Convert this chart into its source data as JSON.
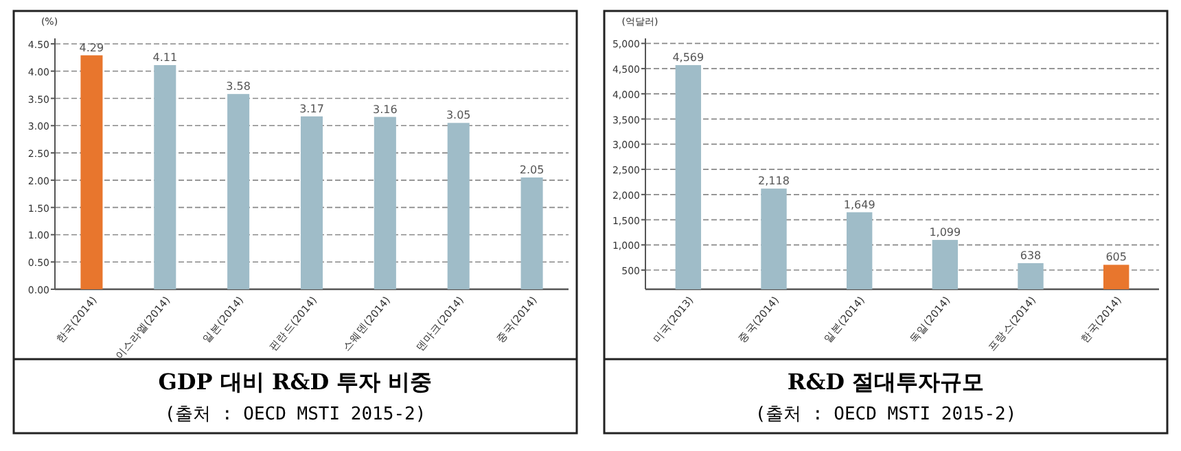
{
  "chart_data": [
    {
      "type": "bar",
      "title": "GDP 대비 R&D 투자 비중",
      "ylabel": "(%)",
      "annotations": [
        "(출처 : OECD MSTI 2015-2)"
      ],
      "categories": [
        "한국(2014)",
        "이스라엘(2014)",
        "일본(2014)",
        "핀란드(2014)",
        "스웨덴(2014)",
        "덴마크(2014)",
        "중국(2014)"
      ],
      "values": [
        4.29,
        4.11,
        3.58,
        3.17,
        3.16,
        3.05,
        2.05
      ],
      "colors": [
        "#e8762d",
        "#9fbcc8",
        "#9fbcc8",
        "#9fbcc8",
        "#9fbcc8",
        "#9fbcc8",
        "#9fbcc8"
      ],
      "data_labels": true,
      "ylim": [
        0,
        4.6
      ],
      "yticks": [
        {
          "value": 0,
          "label": "0.00"
        },
        {
          "value": 0.5,
          "label": "0.50"
        },
        {
          "value": 1,
          "label": "1.00"
        },
        {
          "value": 1.5,
          "label": "1.50"
        },
        {
          "value": 2,
          "label": "2.00"
        },
        {
          "value": 2.5,
          "label": "2.50"
        },
        {
          "value": 3,
          "label": "3.00"
        },
        {
          "value": 3.5,
          "label": "3.50"
        },
        {
          "value": 4,
          "label": "4.00"
        },
        {
          "value": 4.5,
          "label": "4.50"
        }
      ],
      "grid": "y"
    },
    {
      "type": "bar",
      "title": "R&D 절대투자규모",
      "ylabel": "(억달러)",
      "annotations": [
        "(출처 : OECD MSTI 2015-2)"
      ],
      "categories": [
        "미국(2013)",
        "중국(2014)",
        "일본(2014)",
        "독일(2014)",
        "프랑스(2014)",
        "한국(2014)"
      ],
      "values": [
        4569,
        2118,
        1649,
        1099,
        638,
        605
      ],
      "colors": [
        "#9fbcc8",
        "#9fbcc8",
        "#9fbcc8",
        "#9fbcc8",
        "#9fbcc8",
        "#e8762d"
      ],
      "value_labels": [
        "4,569",
        "2,118",
        "1,649",
        "1,099",
        "638",
        "605"
      ],
      "ylim": [
        120,
        5100
      ],
      "yticks": [
        500,
        {
          "value": 1000,
          "label": "1,000"
        },
        {
          "value": 1500,
          "label": "1,500"
        },
        {
          "value": 2000,
          "label": "2,000"
        },
        {
          "value": 2500,
          "label": "2,500"
        },
        {
          "value": 3000,
          "label": "3,000"
        },
        {
          "value": 3500,
          "label": "3,500"
        },
        {
          "value": 4000,
          "label": "4,000"
        },
        {
          "value": 4500,
          "label": "4,500"
        },
        {
          "value": 5000,
          "label": "5,000"
        }
      ],
      "grid": "y"
    }
  ]
}
